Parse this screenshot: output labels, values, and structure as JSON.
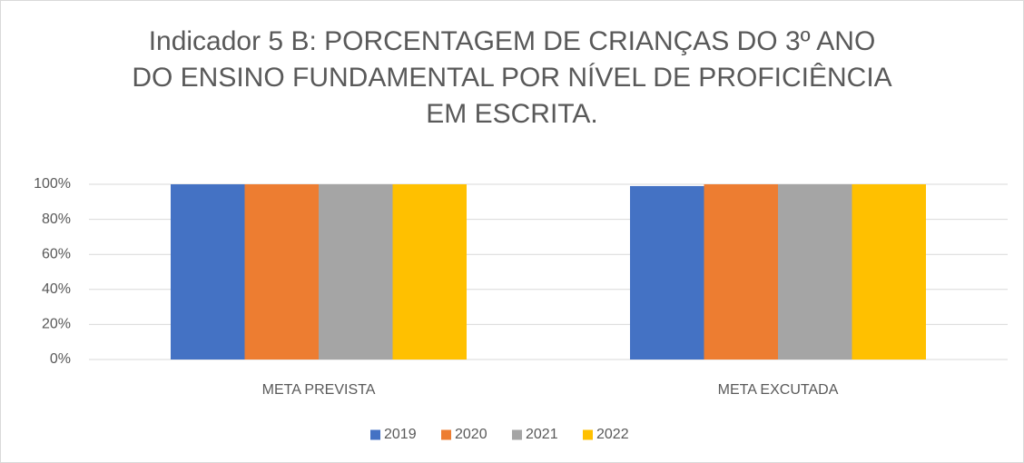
{
  "chart_data": {
    "type": "bar",
    "title": "Indicador 5 B: PORCENTAGEM DE CRIANÇAS DO 3º ANO\nDO ENSINO FUNDAMENTAL POR NÍVEL DE PROFICIÊNCIA\nEM ESCRITA.",
    "categories": [
      "META PREVISTA",
      "META EXCUTADA"
    ],
    "series": [
      {
        "name": "2019",
        "color": "#4472c4",
        "values": [
          100,
          99
        ]
      },
      {
        "name": "2020",
        "color": "#ed7d31",
        "values": [
          100,
          100
        ]
      },
      {
        "name": "2021",
        "color": "#a5a5a5",
        "values": [
          100,
          100
        ]
      },
      {
        "name": "2022",
        "color": "#ffc000",
        "values": [
          100,
          100
        ]
      }
    ],
    "ylim": [
      0,
      100
    ],
    "yticks": [
      {
        "value": 0,
        "label": "0%"
      },
      {
        "value": 20,
        "label": "20%"
      },
      {
        "value": 40,
        "label": "40%"
      },
      {
        "value": 60,
        "label": "60%"
      },
      {
        "value": 80,
        "label": "80%"
      },
      {
        "value": 100,
        "label": "100%"
      }
    ],
    "grid": true,
    "legend": "bottom"
  }
}
